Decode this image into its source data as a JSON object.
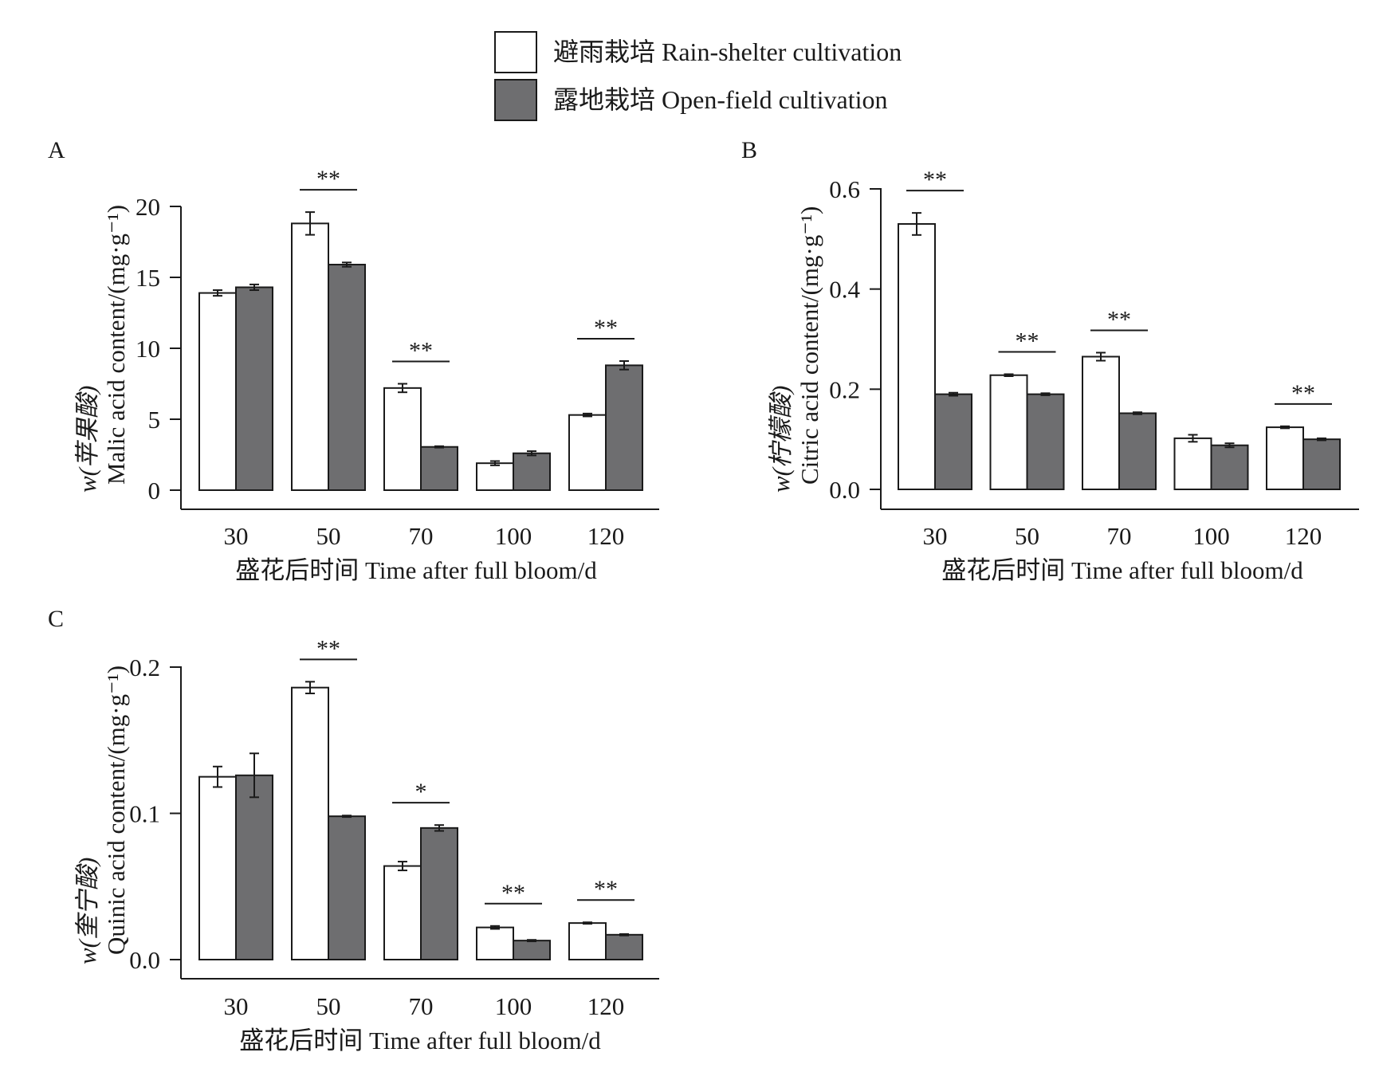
{
  "legend": {
    "items": [
      {
        "label": "避雨栽培 Rain-shelter cultivation",
        "color": "#ffffff"
      },
      {
        "label": "露地栽培 Open-field cultivation",
        "color": "#6e6e70"
      }
    ]
  },
  "colors": {
    "series_1": "#ffffff",
    "series_2": "#6e6e70",
    "axis": "#1a1a1a"
  },
  "chart_data": [
    {
      "panel": "A",
      "type": "bar",
      "categories": [
        "30",
        "50",
        "70",
        "100",
        "120"
      ],
      "series": [
        {
          "name": "避雨栽培 Rain-shelter cultivation",
          "values": [
            13.9,
            18.8,
            7.2,
            1.9,
            5.3
          ],
          "errors": [
            0.2,
            0.8,
            0.3,
            0.15,
            0.1
          ]
        },
        {
          "name": "露地栽培 Open-field cultivation",
          "values": [
            14.3,
            15.9,
            3.05,
            2.6,
            8.8
          ],
          "errors": [
            0.2,
            0.15,
            0.05,
            0.15,
            0.3
          ]
        }
      ],
      "significance": [
        "",
        "**",
        "**",
        "",
        "**"
      ],
      "xlabel": "盛花后时间 Time after full bloom/d",
      "ylabel_line1": "w(苹果酸)",
      "ylabel_line2": "Malic acid content/(mg·g⁻¹)",
      "ylim": [
        0,
        20
      ],
      "yticks": [
        0,
        5,
        10,
        15,
        20
      ],
      "ytick_labels": [
        "0",
        "5",
        "10",
        "15",
        "20"
      ],
      "grid": false
    },
    {
      "panel": "B",
      "type": "bar",
      "categories": [
        "30",
        "50",
        "70",
        "100",
        "120"
      ],
      "series": [
        {
          "name": "避雨栽培 Rain-shelter cultivation",
          "values": [
            0.53,
            0.228,
            0.265,
            0.102,
            0.124
          ],
          "errors": [
            0.022,
            0.002,
            0.008,
            0.007,
            0.002
          ]
        },
        {
          "name": "露地栽培 Open-field cultivation",
          "values": [
            0.19,
            0.19,
            0.152,
            0.088,
            0.1
          ],
          "errors": [
            0.003,
            0.002,
            0.002,
            0.004,
            0.002
          ]
        }
      ],
      "significance": [
        "**",
        "**",
        "**",
        "",
        "**"
      ],
      "xlabel": "盛花后时间 Time after full bloom/d",
      "ylabel_line1": "w(柠檬酸)",
      "ylabel_line2": "Citric acid content/(mg·g⁻¹)",
      "ylim": [
        0,
        0.6
      ],
      "yticks": [
        0,
        0.2,
        0.4,
        0.6
      ],
      "ytick_labels": [
        "0.0",
        "0.2",
        "0.4",
        "0.6"
      ],
      "grid": false
    },
    {
      "panel": "C",
      "type": "bar",
      "categories": [
        "30",
        "50",
        "70",
        "100",
        "120"
      ],
      "series": [
        {
          "name": "避雨栽培 Rain-shelter cultivation",
          "values": [
            0.125,
            0.186,
            0.064,
            0.022,
            0.025
          ],
          "errors": [
            0.007,
            0.004,
            0.003,
            0.001,
            0.0005
          ]
        },
        {
          "name": "露地栽培 Open-field cultivation",
          "values": [
            0.126,
            0.098,
            0.09,
            0.013,
            0.017
          ],
          "errors": [
            0.015,
            0.0005,
            0.002,
            0.0005,
            0.0005
          ]
        }
      ],
      "significance": [
        "",
        "**",
        "*",
        "**",
        "**"
      ],
      "xlabel": "盛花后时间 Time after full bloom/d",
      "ylabel_line1": "w(奎宁酸)",
      "ylabel_line2": "Quinic acid content/(mg·g⁻¹)",
      "ylim": [
        0,
        0.2
      ],
      "yticks": [
        0,
        0.1,
        0.2
      ],
      "ytick_labels": [
        "0.0",
        "0.1",
        "0.2"
      ],
      "grid": false
    }
  ]
}
